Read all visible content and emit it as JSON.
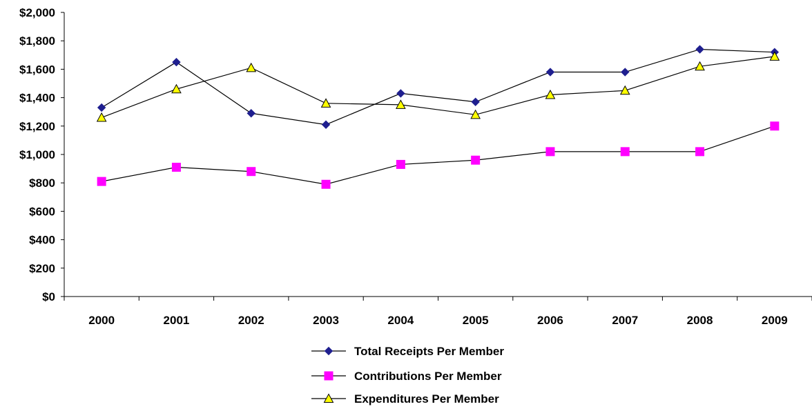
{
  "chart_data": {
    "type": "line",
    "title": "",
    "xlabel": "",
    "ylabel": "",
    "categories": [
      "2000",
      "2001",
      "2002",
      "2003",
      "2004",
      "2005",
      "2006",
      "2007",
      "2008",
      "2009"
    ],
    "ylim": [
      0,
      2000
    ],
    "yticks": [
      0,
      200,
      400,
      600,
      800,
      1000,
      1200,
      1400,
      1600,
      1800,
      2000
    ],
    "ytick_labels": [
      "$0",
      "$200",
      "$400",
      "$600",
      "$800",
      "$1,000",
      "$1,200",
      "$1,400",
      "$1,600",
      "$1,800",
      "$2,000"
    ],
    "grid": false,
    "legend_position": "bottom",
    "series": [
      {
        "name": "Total Receipts Per Member",
        "marker": "diamond",
        "marker_color": "#1f1f8f",
        "values": [
          1330,
          1650,
          1290,
          1210,
          1430,
          1370,
          1580,
          1580,
          1740,
          1720
        ]
      },
      {
        "name": "Contributions Per Member",
        "marker": "square",
        "marker_color": "#ff00ff",
        "values": [
          810,
          910,
          880,
          790,
          930,
          960,
          1020,
          1020,
          1020,
          1200
        ]
      },
      {
        "name": "Expenditures Per Member",
        "marker": "triangle",
        "marker_color": "#ffff00",
        "values": [
          1260,
          1460,
          1610,
          1360,
          1350,
          1280,
          1420,
          1450,
          1620,
          1690
        ]
      }
    ]
  }
}
